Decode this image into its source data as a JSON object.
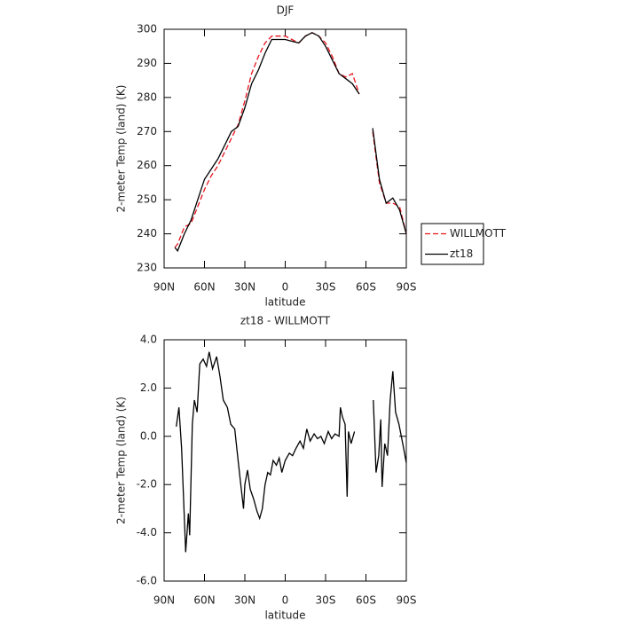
{
  "chart_data": [
    {
      "type": "line",
      "title": "DJF",
      "xlabel": "latitude",
      "ylabel": "2-meter Temp (land) (K)",
      "x": [
        82,
        80,
        75,
        70,
        65,
        60,
        55,
        50,
        45,
        40,
        35,
        30,
        25,
        20,
        15,
        10,
        5,
        0,
        -5,
        -10,
        -15,
        -20,
        -25,
        -30,
        -35,
        -40,
        -45,
        -50,
        -55,
        -60,
        -65,
        -70,
        -75,
        -80,
        -85,
        -90
      ],
      "series": [
        {
          "name": "WILLMOTT",
          "color": "#e8141e",
          "line_style": "dashed",
          "values": [
            236,
            237,
            242,
            243,
            248,
            253,
            257,
            260,
            264,
            268,
            272,
            279,
            287,
            292,
            296,
            298,
            298,
            298,
            297,
            296,
            298,
            299,
            298,
            296,
            292,
            287,
            286,
            287,
            281,
            null,
            270,
            255,
            249,
            249,
            248,
            240
          ]
        },
        {
          "name": "zt18",
          "color": "#000000",
          "line_style": "solid",
          "values": [
            236,
            235,
            240,
            244,
            250,
            256,
            259,
            262,
            266,
            270,
            271.5,
            277,
            284,
            288,
            293,
            297,
            297,
            297,
            296.5,
            296,
            298,
            299,
            298,
            295,
            291,
            287,
            285.5,
            284,
            281,
            null,
            271,
            256,
            249,
            250.5,
            247,
            240
          ]
        }
      ],
      "xlim": [
        90,
        -90
      ],
      "xticks": [
        {
          "value": 90,
          "label": "90N"
        },
        {
          "value": 60,
          "label": "60N"
        },
        {
          "value": 30,
          "label": "30N"
        },
        0,
        {
          "value": -30,
          "label": "30S"
        },
        {
          "value": -60,
          "label": "60S"
        },
        {
          "value": -90,
          "label": "90S"
        }
      ],
      "ylim": [
        230,
        300
      ],
      "yticks": [
        230,
        240,
        250,
        260,
        270,
        280,
        290,
        300
      ],
      "legend": "right"
    },
    {
      "type": "line",
      "title": "zt18 - WILLMOTT",
      "xlabel": "latitude",
      "ylabel": "2-meter Temp (land) (K)",
      "x": [
        81,
        79,
        77,
        74,
        72,
        71,
        69,
        67.5,
        65.5,
        63.5,
        61,
        58.5,
        56.5,
        54,
        51,
        48.5,
        46,
        43,
        40.5,
        37.5,
        35,
        33,
        31,
        30,
        28,
        26,
        23.5,
        21,
        19,
        17,
        15,
        13,
        11,
        9,
        6.5,
        4.5,
        2.5,
        0,
        -3,
        -5.5,
        -8,
        -11,
        -13.5,
        -16,
        -18.5,
        -21.5,
        -24,
        -26.5,
        -29,
        -32,
        -34.5,
        -37,
        -40,
        -41,
        -42.5,
        -44.5,
        -46,
        -47,
        -49,
        -51.5,
        -58,
        -65.5,
        -67.5,
        -69.5,
        -71,
        -72,
        -74,
        -76,
        -78,
        -80,
        -82,
        -84.5,
        -88,
        -90
      ],
      "series": [
        {
          "name": "zt18 - WILLMOTT",
          "color": "#000000",
          "line_style": "solid",
          "values": [
            0.4,
            1.2,
            -0.5,
            -4.8,
            -3.2,
            -4.1,
            0.5,
            1.5,
            1.0,
            3.0,
            3.2,
            2.9,
            3.5,
            2.8,
            3.3,
            2.5,
            1.5,
            1.2,
            0.5,
            0.3,
            -1.0,
            -2.0,
            -3.0,
            -2.0,
            -1.4,
            -2.2,
            -2.6,
            -3.1,
            -3.4,
            -3.0,
            -2.0,
            -1.5,
            -1.6,
            -1.0,
            -1.2,
            -0.9,
            -1.5,
            -1.0,
            -0.7,
            -0.8,
            -0.5,
            -0.2,
            -0.5,
            0.3,
            -0.2,
            0.1,
            -0.1,
            0.0,
            -0.3,
            0.2,
            -0.1,
            0.1,
            0.0,
            1.2,
            0.8,
            0.5,
            -2.5,
            0.2,
            -0.3,
            0.2,
            null,
            1.5,
            -1.5,
            -0.8,
            0.7,
            -2.1,
            -0.3,
            -0.8,
            1.5,
            2.7,
            1.0,
            0.5,
            -0.5,
            -1.1
          ]
        }
      ],
      "xlim": [
        90,
        -90
      ],
      "xticks": [
        {
          "value": 90,
          "label": "90N"
        },
        {
          "value": 60,
          "label": "60N"
        },
        {
          "value": 30,
          "label": "30N"
        },
        0,
        {
          "value": -30,
          "label": "30S"
        },
        {
          "value": -60,
          "label": "60S"
        },
        {
          "value": -90,
          "label": "90S"
        }
      ],
      "ylim": [
        -6,
        4
      ],
      "yticks": [
        {
          "value": -6,
          "label": "-6.0"
        },
        {
          "value": -4,
          "label": "-4.0"
        },
        {
          "value": -2,
          "label": "-2.0"
        },
        {
          "value": 0,
          "label": "0.0"
        },
        {
          "value": 2,
          "label": "2.0"
        },
        {
          "value": 4,
          "label": "4.0"
        }
      ]
    }
  ]
}
